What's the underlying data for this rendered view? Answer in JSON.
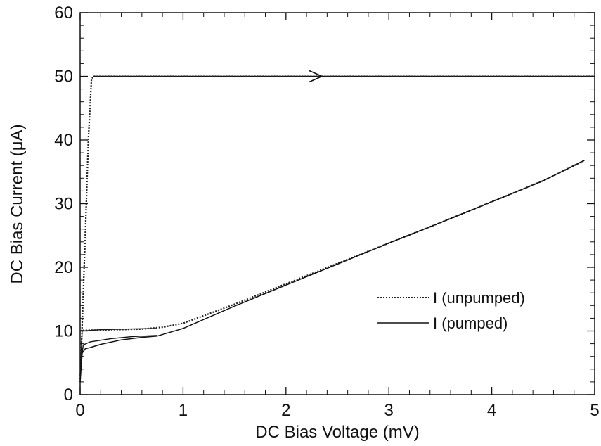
{
  "chart_data": {
    "type": "line",
    "title": "",
    "xlabel": "DC Bias Voltage (mV)",
    "ylabel": "DC Bias Current (μA)",
    "xlim": [
      0,
      5
    ],
    "ylim": [
      0,
      60
    ],
    "xticks": [
      0,
      1,
      2,
      3,
      4,
      5
    ],
    "yticks": [
      0,
      10,
      20,
      30,
      40,
      50,
      60
    ],
    "grid": false,
    "legend_position": "right",
    "annotations": [
      {
        "type": "arrow",
        "direction": "right",
        "at": [
          2.35,
          50
        ]
      }
    ],
    "series": [
      {
        "name": "I (unpumped)",
        "style": "dotted",
        "x": [
          0.0,
          0.02,
          0.05,
          0.08,
          0.11,
          0.13,
          0.5,
          1.0,
          2.0,
          3.0,
          4.0,
          5.0
        ],
        "y": [
          2.0,
          11.0,
          25.0,
          40.0,
          49.5,
          50.0,
          50.0,
          50.0,
          50.0,
          50.0,
          50.0,
          50.0
        ]
      },
      {
        "name": "I (unpumped)",
        "style": "dotted",
        "x": [
          0.0,
          0.02,
          0.3,
          0.6,
          0.8,
          1.0,
          1.2,
          1.5,
          2.0,
          2.5,
          3.0,
          3.5,
          4.0,
          4.5,
          4.9
        ],
        "y": [
          10.0,
          10.1,
          10.2,
          10.3,
          10.6,
          11.2,
          12.4,
          14.2,
          17.4,
          20.6,
          23.8,
          27.0,
          30.3,
          33.6,
          36.8
        ]
      },
      {
        "name": "I (pumped)",
        "style": "solid",
        "x": [
          0.0,
          0.02,
          0.05,
          0.1,
          0.2,
          0.4,
          0.6,
          0.75,
          1.0,
          1.2,
          1.5,
          2.0,
          2.5,
          3.0,
          3.5,
          4.0,
          4.5,
          4.9
        ],
        "y": [
          2.0,
          6.5,
          7.2,
          7.4,
          7.9,
          8.6,
          9.0,
          9.2,
          10.4,
          11.8,
          13.9,
          17.2,
          20.5,
          23.8,
          27.0,
          30.3,
          33.6,
          36.8
        ]
      }
    ],
    "extra_solid_lines": [
      {
        "x": [
          0.0,
          0.02,
          0.2,
          0.4,
          0.75
        ],
        "y": [
          3.0,
          10.0,
          10.2,
          10.3,
          10.4
        ]
      },
      {
        "x": [
          0.0,
          0.03,
          0.1,
          0.3,
          0.5,
          0.75
        ],
        "y": [
          4.0,
          7.8,
          8.3,
          8.8,
          9.1,
          9.3
        ]
      },
      {
        "x": [
          0.13,
          2.35,
          5.0
        ],
        "y": [
          50.0,
          50.0,
          50.0
        ]
      }
    ],
    "legend": [
      {
        "label": "I  (unpumped)",
        "style": "dotted"
      },
      {
        "label": "I  (pumped)",
        "style": "solid"
      }
    ]
  }
}
